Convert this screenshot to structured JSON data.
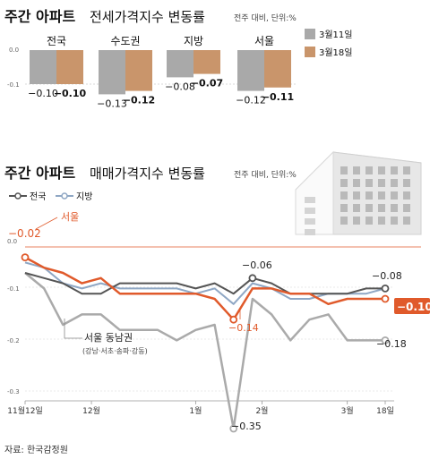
{
  "header": {
    "title1_bold": "주간 아파트",
    "title1_rest": "전세가격지수 변동률",
    "unit1": "전주 대비, 단위:%",
    "title2_bold": "주간 아파트",
    "title2_rest": "매매가격지수 변동률",
    "unit2": "전주 대비, 단위:%"
  },
  "source": "자료: 한국감정원",
  "colors": {
    "prev": "#a9a9a9",
    "curr": "#c9956b",
    "nation": "#555555",
    "region": "#8fa7c4",
    "seoul": "#e05a2b",
    "gangnam": "#aaaaaa"
  },
  "chart_data": [
    {
      "type": "bar",
      "title": "주간 아파트 전세가격지수 변동률",
      "categories": [
        "전국",
        "수도권",
        "지방",
        "서울"
      ],
      "series": [
        {
          "name": "3월11일",
          "values": [
            -0.1,
            -0.13,
            -0.08,
            -0.12
          ]
        },
        {
          "name": "3월18일",
          "values": [
            -0.1,
            -0.12,
            -0.07,
            -0.11
          ]
        }
      ],
      "value_labels": [
        [
          "-0.10",
          "-0.13",
          "-0.08",
          "-0.12"
        ],
        [
          "-0.10",
          "-0.12",
          "-0.07",
          "-0.11"
        ]
      ],
      "yticks": [
        "0.0",
        "-0.1"
      ],
      "ylim": [
        -0.15,
        0
      ]
    },
    {
      "type": "line",
      "title": "주간 아파트 매매가격지수 변동률",
      "x_ticks": [
        "11월12일",
        "12월",
        "1월",
        "2월",
        "3월",
        "18일"
      ],
      "yticks": [
        "0.0",
        "-0.1",
        "-0.2",
        "-0.3"
      ],
      "ylim": [
        -0.3,
        0
      ],
      "legend": [
        "전국",
        "지방"
      ],
      "series": [
        {
          "name": "전국",
          "values": [
            -0.05,
            -0.06,
            -0.07,
            -0.09,
            -0.09,
            -0.07,
            -0.07,
            -0.07,
            -0.07,
            -0.08,
            -0.07,
            -0.09,
            -0.06,
            -0.07,
            -0.09,
            -0.09,
            -0.09,
            -0.09,
            -0.08,
            -0.08
          ]
        },
        {
          "name": "지방",
          "values": [
            -0.03,
            -0.04,
            -0.07,
            -0.08,
            -0.07,
            -0.08,
            -0.08,
            -0.08,
            -0.08,
            -0.09,
            -0.08,
            -0.11,
            -0.07,
            -0.08,
            -0.1,
            -0.1,
            -0.09,
            -0.09,
            -0.09,
            -0.08
          ]
        },
        {
          "name": "서울",
          "values": [
            -0.02,
            -0.04,
            -0.05,
            -0.07,
            -0.06,
            -0.09,
            -0.09,
            -0.09,
            -0.09,
            -0.09,
            -0.1,
            -0.14,
            -0.08,
            -0.08,
            -0.09,
            -0.09,
            -0.11,
            -0.1,
            -0.1,
            -0.1
          ]
        },
        {
          "name": "서울 동남권",
          "values": [
            -0.05,
            -0.08,
            -0.15,
            -0.13,
            -0.13,
            -0.16,
            -0.16,
            -0.16,
            -0.18,
            -0.16,
            -0.15,
            -0.35,
            -0.1,
            -0.13,
            -0.18,
            -0.14,
            -0.13,
            -0.18,
            -0.18,
            -0.18
          ]
        }
      ],
      "annotations": {
        "seoul_label": "서울",
        "gangnam_label": "서울 동남권",
        "gangnam_sub": "(강남·서초·송파·강동)",
        "start_seoul": "-0.02",
        "nation_peak": "-0.06",
        "seoul_low": "-0.14",
        "gangnam_low": "-0.35",
        "nation_end": "-0.08",
        "seoul_end": "-0.10",
        "gangnam_end": "-0.18"
      }
    }
  ]
}
